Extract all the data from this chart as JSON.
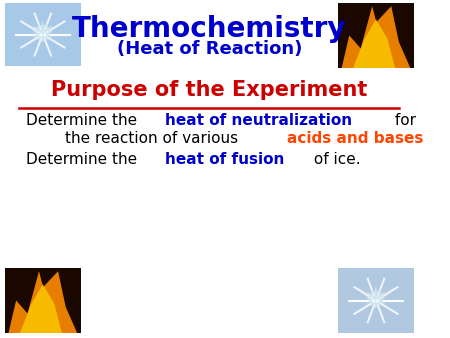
{
  "title_main": "Thermochemistry",
  "title_sub": "(Heat of Reaction)",
  "title_color": "#0000CC",
  "section_heading": "Purpose of the Experiment",
  "section_color": "#CC0000",
  "bg_color": "#FFFFFF",
  "line1_parts": [
    {
      "text": "Determine the ",
      "color": "#000000",
      "bold": false
    },
    {
      "text": "heat of neutralization",
      "color": "#0000CC",
      "bold": true
    },
    {
      "text": " for",
      "color": "#000000",
      "bold": false
    }
  ],
  "line2_parts": [
    {
      "text": "        the reaction of various ",
      "color": "#000000",
      "bold": false
    },
    {
      "text": "acids and bases",
      "color": "#FF4500",
      "bold": true
    },
    {
      "text": ".",
      "color": "#000000",
      "bold": false
    }
  ],
  "line3_parts": [
    {
      "text": "Determine the ",
      "color": "#000000",
      "bold": false
    },
    {
      "text": "heat of fusion",
      "color": "#0000CC",
      "bold": true
    },
    {
      "text": " of ice.",
      "color": "#000000",
      "bold": false
    }
  ]
}
